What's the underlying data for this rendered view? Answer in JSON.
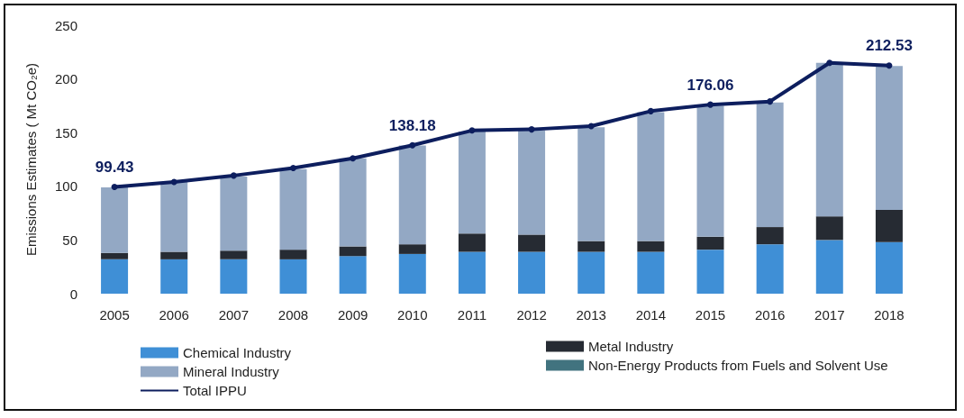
{
  "chart_data": {
    "type": "bar",
    "stacked": true,
    "ylabel": "Emissions Estimates ( Mt CO₂e)",
    "categories": [
      "2005",
      "2006",
      "2007",
      "2008",
      "2009",
      "2010",
      "2011",
      "2012",
      "2013",
      "2014",
      "2015",
      "2016",
      "2017",
      "2018"
    ],
    "series": [
      {
        "name": "Chemical Industry",
        "color": "#3f8fd6",
        "values": [
          32,
          32,
          32,
          32,
          35,
          37,
          39,
          39,
          39,
          39,
          41,
          46,
          50,
          48
        ]
      },
      {
        "name": "Metal Industry",
        "color": "#262b33",
        "values": [
          6,
          7,
          8,
          9,
          9,
          9,
          17,
          16,
          10,
          10,
          12,
          16,
          22,
          30
        ]
      },
      {
        "name": "Mineral Industry",
        "color": "#93a8c4",
        "values": [
          61,
          65,
          69,
          75,
          82,
          92,
          95,
          97,
          106,
          120,
          122,
          116,
          143,
          134
        ]
      },
      {
        "name": "Non-Energy Products from Fuels and Solvent Use",
        "color": "#41737f",
        "values": [
          null,
          null,
          null,
          null,
          null,
          null,
          null,
          null,
          null,
          null,
          null,
          null,
          null,
          null
        ]
      },
      {
        "name": "Total IPPU",
        "type": "line",
        "color": "#0d1e5e",
        "marker": "circle",
        "values": [
          99.43,
          104,
          110,
          117,
          126,
          138.18,
          152,
          153,
          156,
          170,
          176.06,
          179,
          215,
          212.53
        ],
        "value_labels": [
          "99.43",
          null,
          null,
          null,
          null,
          "138.18",
          null,
          null,
          null,
          null,
          "176.06",
          null,
          null,
          "212.53"
        ]
      }
    ],
    "ylim": [
      0,
      250
    ],
    "yticks": [
      0,
      50,
      100,
      150,
      200,
      250
    ],
    "grid": false,
    "legend": "bottom"
  }
}
